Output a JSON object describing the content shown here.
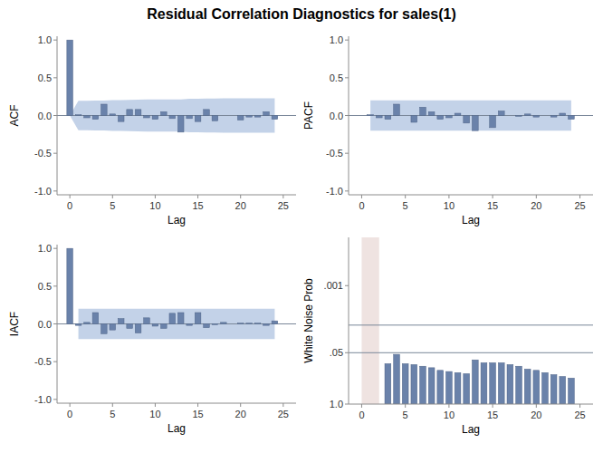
{
  "title": "Residual Correlation Diagnostics for sales(1)",
  "chart_data": [
    {
      "type": "bar",
      "x_label": "Lag",
      "y_label": "ACF",
      "color": "#6a82aa",
      "grid": false,
      "x": [
        0,
        1,
        2,
        3,
        4,
        5,
        6,
        7,
        8,
        9,
        10,
        11,
        12,
        13,
        14,
        15,
        16,
        17,
        18,
        19,
        20,
        21,
        22,
        23,
        24
      ],
      "values": [
        1.0,
        0.01,
        -0.03,
        -0.05,
        0.15,
        0.02,
        -0.08,
        0.08,
        0.08,
        -0.03,
        -0.05,
        0.05,
        -0.04,
        -0.22,
        -0.04,
        -0.08,
        0.08,
        -0.07,
        0.0,
        0.0,
        -0.06,
        -0.02,
        -0.02,
        0.05,
        -0.05
      ],
      "confidence_limit": [
        0,
        0.196,
        0.196,
        0.197,
        0.198,
        0.205,
        0.205,
        0.207,
        0.21,
        0.212,
        0.212,
        0.213,
        0.214,
        0.214,
        0.223,
        0.223,
        0.224,
        0.226,
        0.227,
        0.227,
        0.227,
        0.228,
        0.228,
        0.228,
        0.229
      ],
      "reference_lines": [
        0
      ],
      "xlim": [
        -1.5,
        26.5
      ],
      "xticks": [
        0,
        5,
        10,
        15,
        20,
        25
      ],
      "ylim": [
        -1.05,
        1.05
      ],
      "yticks": [
        {
          "value": -1,
          "label": "-1.0"
        },
        {
          "value": -0.5,
          "label": "-0.5"
        },
        {
          "value": 0,
          "label": "0.0"
        },
        {
          "value": 0.5,
          "label": "0.5"
        },
        {
          "value": 1,
          "label": "1.0"
        }
      ]
    },
    {
      "type": "bar",
      "x_label": "Lag",
      "y_label": "PACF",
      "color": "#6a82aa",
      "grid": false,
      "x": [
        1,
        2,
        3,
        4,
        5,
        6,
        7,
        8,
        9,
        10,
        11,
        12,
        13,
        14,
        15,
        16,
        17,
        18,
        19,
        20,
        21,
        22,
        23,
        24
      ],
      "values": [
        0.01,
        -0.03,
        -0.05,
        0.15,
        0.0,
        -0.09,
        0.11,
        0.05,
        -0.05,
        -0.03,
        0.03,
        -0.1,
        -0.2,
        0.0,
        -0.16,
        0.06,
        0.0,
        -0.01,
        0.02,
        -0.02,
        0.0,
        -0.02,
        0.03,
        -0.05
      ],
      "confidence_limit": [
        0.2,
        0.2,
        0.2,
        0.2,
        0.2,
        0.2,
        0.2,
        0.2,
        0.2,
        0.2,
        0.2,
        0.2,
        0.2,
        0.2,
        0.2,
        0.2,
        0.2,
        0.2,
        0.2,
        0.2,
        0.2,
        0.2,
        0.2,
        0.2
      ],
      "reference_lines": [
        0
      ],
      "xlim": [
        -1.5,
        26.5
      ],
      "xticks": [
        0,
        5,
        10,
        15,
        20,
        25
      ],
      "ylim": [
        -1.05,
        1.05
      ],
      "yticks": [
        {
          "value": -1,
          "label": "-1.0"
        },
        {
          "value": -0.5,
          "label": "-0.5"
        },
        {
          "value": 0,
          "label": "0.0"
        },
        {
          "value": 0.5,
          "label": "0.5"
        },
        {
          "value": 1,
          "label": "1.0"
        }
      ]
    },
    {
      "type": "bar",
      "x_label": "Lag",
      "y_label": "IACF",
      "color": "#6a82aa",
      "grid": false,
      "x": [
        0,
        1,
        2,
        3,
        4,
        5,
        6,
        7,
        8,
        9,
        10,
        11,
        12,
        13,
        14,
        15,
        16,
        17,
        18,
        19,
        20,
        21,
        22,
        23,
        24
      ],
      "values": [
        1.0,
        -0.02,
        0.02,
        0.15,
        -0.13,
        -0.08,
        0.07,
        -0.06,
        -0.12,
        0.08,
        -0.03,
        -0.06,
        0.14,
        0.15,
        -0.02,
        0.15,
        -0.05,
        -0.01,
        0.02,
        0.0,
        0.01,
        0.01,
        0.01,
        -0.02,
        0.04
      ],
      "confidence_limit": [
        null,
        0.2,
        0.2,
        0.2,
        0.2,
        0.2,
        0.2,
        0.2,
        0.2,
        0.2,
        0.2,
        0.2,
        0.2,
        0.2,
        0.2,
        0.2,
        0.2,
        0.2,
        0.2,
        0.2,
        0.2,
        0.2,
        0.2,
        0.2,
        0.2
      ],
      "reference_lines": [
        0
      ],
      "xlim": [
        -1.5,
        26.5
      ],
      "xticks": [
        0,
        5,
        10,
        15,
        20,
        25
      ],
      "ylim": [
        -1.05,
        1.05
      ],
      "yticks": [
        {
          "value": -1,
          "label": "-1.0"
        },
        {
          "value": -0.5,
          "label": "-0.5"
        },
        {
          "value": 0,
          "label": "0.0"
        },
        {
          "value": 0.5,
          "label": "0.5"
        },
        {
          "value": 1,
          "label": "1.0"
        }
      ]
    },
    {
      "type": "bar",
      "x_label": "Lag",
      "y_label": "White Noise Prob",
      "color": "#6a82aa",
      "grid": false,
      "log": "y",
      "x": [
        3,
        4,
        5,
        6,
        7,
        8,
        9,
        10,
        11,
        12,
        13,
        14,
        15,
        16,
        17,
        18,
        19,
        20,
        21,
        22,
        23,
        24
      ],
      "values": [
        0.095,
        0.055,
        0.095,
        0.1,
        0.11,
        0.12,
        0.14,
        0.15,
        0.16,
        0.17,
        0.076,
        0.09,
        0.09,
        0.09,
        0.1,
        0.11,
        0.13,
        0.14,
        0.16,
        0.18,
        0.2,
        0.22
      ],
      "shaded_range": [
        0,
        2
      ],
      "reference_lines": [
        0.01,
        0.05
      ],
      "xlim": [
        -1.5,
        26.5
      ],
      "xticks": [
        0,
        5,
        10,
        15,
        20,
        25
      ],
      "ylim": [
        1,
        6e-05
      ],
      "yticks": [
        {
          "value": 1,
          "label": "1.0"
        },
        {
          "value": 0.05,
          "label": ".05"
        },
        {
          "value": 0.001,
          "label": ".001"
        }
      ]
    }
  ]
}
